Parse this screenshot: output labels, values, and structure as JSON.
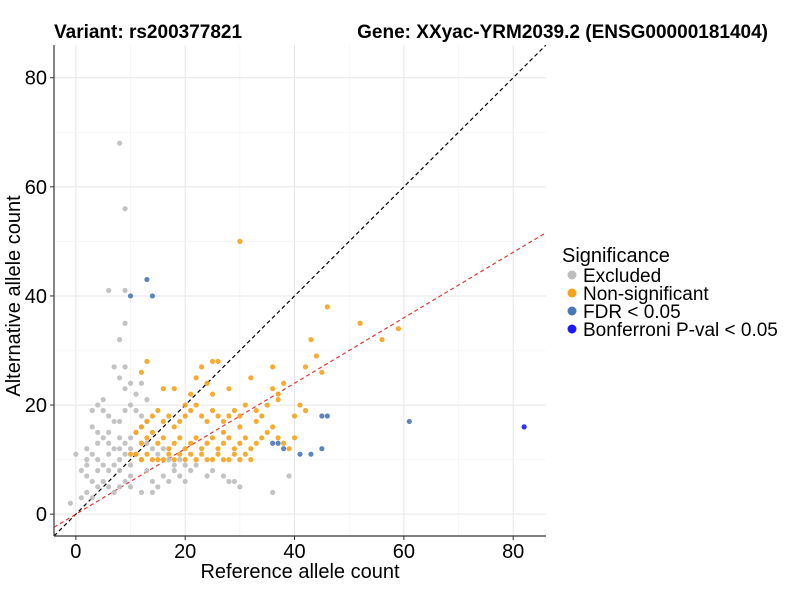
{
  "chart_data": {
    "type": "scatter",
    "title_left": "Variant: rs200377821",
    "title_right": "Gene: XXyac-YRM2039.2 (ENSG00000181404)",
    "xlabel": "Reference allele count",
    "ylabel": "Alternative allele count",
    "xlim": [
      -4,
      86
    ],
    "ylim": [
      -4,
      86
    ],
    "x_ticks": [
      0,
      20,
      40,
      60,
      80
    ],
    "y_ticks": [
      0,
      20,
      40,
      60,
      80
    ],
    "grid": true,
    "legend_position": "right",
    "legend": {
      "title": "Significance",
      "entries": [
        {
          "label": "Excluded",
          "color": "#bdbdbd"
        },
        {
          "label": "Non-significant",
          "color": "#f7a21b"
        },
        {
          "label": "FDR < 0.05",
          "color": "#4a78b5"
        },
        {
          "label": "Bonferroni P-val < 0.05",
          "color": "#1a1aff"
        }
      ]
    },
    "reference_lines": [
      {
        "name": "identity",
        "slope": 1,
        "intercept": 0,
        "color": "#000000",
        "dash": true
      },
      {
        "name": "ratio-fit",
        "slope": 0.6,
        "intercept": 0,
        "color": "#e53935",
        "dash": true
      }
    ],
    "series": [
      {
        "name": "Excluded",
        "color": "#bdbdbd",
        "points": [
          [
            8,
            68
          ],
          [
            9,
            56
          ],
          [
            6,
            41
          ],
          [
            9,
            41
          ],
          [
            9,
            35
          ],
          [
            8,
            32
          ],
          [
            7,
            27
          ],
          [
            9,
            27
          ],
          [
            8,
            25
          ],
          [
            10,
            24
          ],
          [
            4,
            20
          ],
          [
            5,
            19
          ],
          [
            6,
            18
          ],
          [
            7,
            17
          ],
          [
            8,
            17
          ],
          [
            9,
            19
          ],
          [
            10,
            20
          ],
          [
            11,
            19
          ],
          [
            12,
            18
          ],
          [
            13,
            17
          ],
          [
            3,
            16
          ],
          [
            4,
            15
          ],
          [
            5,
            14
          ],
          [
            6,
            13
          ],
          [
            7,
            12
          ],
          [
            8,
            12
          ],
          [
            9,
            13
          ],
          [
            10,
            14
          ],
          [
            11,
            15
          ],
          [
            12,
            16
          ],
          [
            2,
            12
          ],
          [
            3,
            11
          ],
          [
            4,
            10
          ],
          [
            5,
            9
          ],
          [
            6,
            8
          ],
          [
            7,
            9
          ],
          [
            8,
            10
          ],
          [
            9,
            11
          ],
          [
            10,
            12
          ],
          [
            11,
            11
          ],
          [
            1,
            8
          ],
          [
            2,
            7
          ],
          [
            3,
            6
          ],
          [
            4,
            5
          ],
          [
            5,
            6
          ],
          [
            6,
            5
          ],
          [
            7,
            4
          ],
          [
            8,
            5
          ],
          [
            9,
            6
          ],
          [
            10,
            7
          ],
          [
            1,
            3
          ],
          [
            2,
            4
          ],
          [
            3,
            3
          ],
          [
            -1,
            2
          ],
          [
            0,
            11
          ],
          [
            2,
            9
          ],
          [
            4,
            13
          ],
          [
            6,
            15
          ],
          [
            8,
            14
          ],
          [
            10,
            9
          ],
          [
            13,
            13
          ],
          [
            14,
            12
          ],
          [
            15,
            11
          ],
          [
            16,
            12
          ],
          [
            17,
            10
          ],
          [
            18,
            9
          ],
          [
            19,
            10
          ],
          [
            20,
            9
          ],
          [
            21,
            8
          ],
          [
            22,
            9
          ],
          [
            12,
            10
          ],
          [
            13,
            8
          ],
          [
            14,
            6
          ],
          [
            15,
            5
          ],
          [
            16,
            7
          ],
          [
            17,
            6
          ],
          [
            18,
            8
          ],
          [
            19,
            7
          ],
          [
            20,
            6
          ],
          [
            24,
            7
          ],
          [
            25,
            8
          ],
          [
            27,
            7
          ],
          [
            28,
            6
          ],
          [
            29,
            6
          ],
          [
            30,
            5
          ],
          [
            36,
            4
          ],
          [
            39,
            7
          ],
          [
            3,
            19
          ],
          [
            5,
            21
          ],
          [
            11,
            22
          ],
          [
            12,
            24
          ],
          [
            13,
            21
          ],
          [
            9,
            23
          ],
          [
            2,
            10
          ],
          [
            4,
            8
          ],
          [
            6,
            11
          ],
          [
            8,
            8
          ],
          [
            10,
            5
          ],
          [
            12,
            4
          ],
          [
            14,
            4
          ]
        ]
      },
      {
        "name": "Non-significant",
        "color": "#f7a21b",
        "points": [
          [
            30,
            50
          ],
          [
            46,
            38
          ],
          [
            43,
            32
          ],
          [
            52,
            35
          ],
          [
            59,
            34
          ],
          [
            56,
            32
          ],
          [
            42,
            27
          ],
          [
            44,
            29
          ],
          [
            45,
            26
          ],
          [
            36,
            27
          ],
          [
            37,
            22
          ],
          [
            36,
            23
          ],
          [
            37,
            21
          ],
          [
            40,
            18
          ],
          [
            41,
            20
          ],
          [
            42,
            19
          ],
          [
            34,
            18
          ],
          [
            33,
            19
          ],
          [
            31,
            20
          ],
          [
            30,
            18
          ],
          [
            29,
            19
          ],
          [
            28,
            18
          ],
          [
            27,
            17
          ],
          [
            26,
            18
          ],
          [
            25,
            19
          ],
          [
            24,
            17
          ],
          [
            23,
            18
          ],
          [
            22,
            20
          ],
          [
            21,
            19
          ],
          [
            20,
            18
          ],
          [
            19,
            17
          ],
          [
            18,
            16
          ],
          [
            17,
            18
          ],
          [
            16,
            17
          ],
          [
            15,
            19
          ],
          [
            14,
            18
          ],
          [
            13,
            17
          ],
          [
            12,
            16
          ],
          [
            11,
            15
          ],
          [
            12,
            13
          ],
          [
            13,
            14
          ],
          [
            14,
            15
          ],
          [
            15,
            13
          ],
          [
            16,
            14
          ],
          [
            17,
            12
          ],
          [
            18,
            13
          ],
          [
            19,
            14
          ],
          [
            20,
            12
          ],
          [
            21,
            13
          ],
          [
            22,
            14
          ],
          [
            23,
            12
          ],
          [
            24,
            13
          ],
          [
            25,
            14
          ],
          [
            26,
            12
          ],
          [
            27,
            13
          ],
          [
            28,
            14
          ],
          [
            29,
            12
          ],
          [
            30,
            13
          ],
          [
            31,
            14
          ],
          [
            32,
            12
          ],
          [
            33,
            13
          ],
          [
            34,
            14
          ],
          [
            35,
            15
          ],
          [
            36,
            16
          ],
          [
            37,
            14
          ],
          [
            38,
            13
          ],
          [
            39,
            12
          ],
          [
            40,
            14
          ],
          [
            11,
            11
          ],
          [
            12,
            10
          ],
          [
            13,
            11
          ],
          [
            14,
            10
          ],
          [
            15,
            10
          ],
          [
            16,
            10
          ],
          [
            17,
            11
          ],
          [
            18,
            10
          ],
          [
            19,
            11
          ],
          [
            20,
            10
          ],
          [
            21,
            11
          ],
          [
            22,
            10
          ],
          [
            23,
            11
          ],
          [
            24,
            10
          ],
          [
            25,
            10
          ],
          [
            26,
            11
          ],
          [
            27,
            10
          ],
          [
            28,
            10
          ],
          [
            29,
            11
          ],
          [
            30,
            10
          ],
          [
            31,
            11
          ],
          [
            32,
            10
          ],
          [
            22,
            25
          ],
          [
            23,
            27
          ],
          [
            25,
            28
          ],
          [
            26,
            28
          ],
          [
            24,
            24
          ],
          [
            21,
            22
          ],
          [
            18,
            23
          ],
          [
            16,
            23
          ],
          [
            12,
            26
          ],
          [
            13,
            28
          ],
          [
            20,
            20
          ],
          [
            25,
            22
          ],
          [
            28,
            23
          ],
          [
            32,
            25
          ],
          [
            35,
            20
          ],
          [
            38,
            24
          ],
          [
            30,
            16
          ],
          [
            27,
            15
          ],
          [
            33,
            17
          ],
          [
            10,
            11
          ]
        ]
      },
      {
        "name": "FDR < 0.05",
        "color": "#4a78b5",
        "points": [
          [
            13,
            43
          ],
          [
            14,
            40
          ],
          [
            10,
            40
          ],
          [
            61,
            17
          ],
          [
            45,
            18
          ],
          [
            46,
            18
          ],
          [
            36,
            13
          ],
          [
            37,
            13
          ],
          [
            38,
            12
          ],
          [
            41,
            11
          ],
          [
            45,
            12
          ],
          [
            43,
            11
          ]
        ]
      },
      {
        "name": "Bonferroni P-val < 0.05",
        "color": "#1a1aff",
        "points": [
          [
            82,
            16
          ]
        ]
      }
    ]
  }
}
